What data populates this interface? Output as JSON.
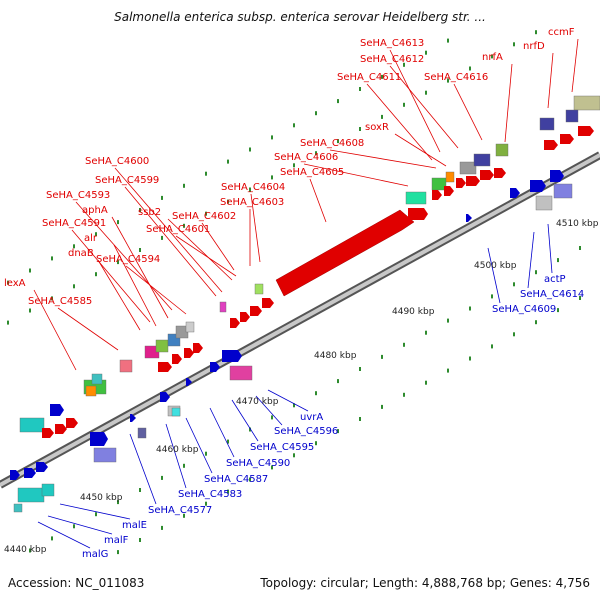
{
  "title": "Salmonella enterica subsp. enterica serovar Heidelberg str. ...",
  "footer": {
    "accession": "Accession: NC_011083",
    "summary": "Topology: circular; Length: 4,888,768 bp; Genes: 4,756"
  },
  "colors": {
    "forward_label": "#e00000",
    "reverse_label": "#0000cc",
    "backbone": "#888888",
    "tick": "#2e8b2e"
  },
  "scale_labels": [
    "4440 kbp",
    "4450 kbp",
    "4460 kbp",
    "4470 kbp",
    "4480 kbp",
    "4490 kbp",
    "4500 kbp",
    "4510 kbp"
  ],
  "forward_genes": [
    "SeHA_C4613",
    "ccmF",
    "nrfD",
    "SeHA_C4612",
    "nrfA",
    "SeHA_C4611",
    "SeHA_C4616",
    "soxR",
    "SeHA_C4608",
    "SeHA_C4606",
    "SeHA_C4605",
    "SeHA_C4600",
    "SeHA_C4599",
    "SeHA_C4604",
    "SeHA_C4593",
    "SeHA_C4603",
    "aphA",
    "ssb2",
    "SeHA_C4602",
    "SeHA_C4591",
    "SeHA_C4601",
    "alr",
    "dnaB",
    "SeHA_C4594",
    "lexA",
    "SeHA_C4585"
  ],
  "reverse_genes": [
    "SeHA_C4614",
    "SeHA_C4609",
    "actP",
    "uvrA",
    "SeHA_C4596",
    "SeHA_C4595",
    "SeHA_C4590",
    "SeHA_C4587",
    "SeHA_C4583",
    "SeHA_C4577",
    "malE",
    "malF",
    "malG"
  ]
}
